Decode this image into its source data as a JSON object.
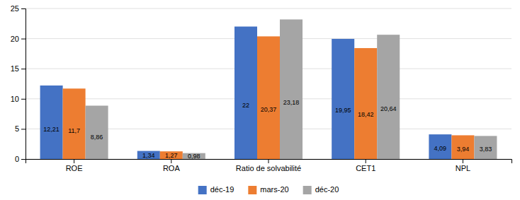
{
  "chart_data": {
    "type": "bar",
    "categories": [
      "ROE",
      "ROA",
      "Ratio de solvabilité",
      "CET1",
      "NPL"
    ],
    "series": [
      {
        "name": "déc-19",
        "color": "#4472C4",
        "values": [
          12.21,
          1.34,
          22.0,
          19.95,
          4.09
        ],
        "value_labels": [
          "12,21",
          "1,34",
          "22",
          "19,95",
          "4,09"
        ]
      },
      {
        "name": "mars-20",
        "color": "#ED7D31",
        "values": [
          11.7,
          1.27,
          20.37,
          18.42,
          3.94
        ],
        "value_labels": [
          "11,7",
          "1,27",
          "20,37",
          "18,42",
          "3,94"
        ]
      },
      {
        "name": "déc-20",
        "color": "#A5A5A5",
        "values": [
          8.86,
          0.98,
          23.18,
          20.64,
          3.83
        ],
        "value_labels": [
          "8,86",
          "0,98",
          "23,18",
          "20,64",
          "3,83"
        ]
      }
    ],
    "ylim": [
      0,
      25
    ],
    "yticks": [
      0,
      5,
      10,
      15,
      20,
      25
    ],
    "grid": true,
    "data_labels": true,
    "legend": "bottom"
  }
}
